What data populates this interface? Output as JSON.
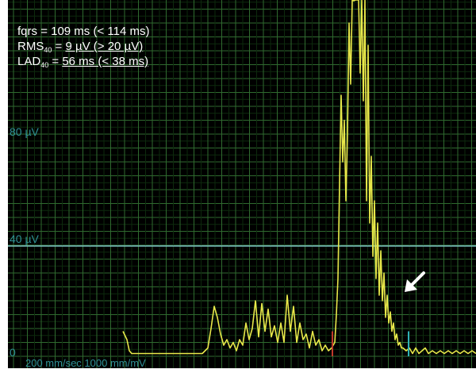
{
  "measures": {
    "fqrs_label": "fqrs",
    "fqrs_value": "= 109 ms (< 114 ms)",
    "rms_label": "RMS",
    "rms_sub": "40",
    "rms_value": "9 µV (> 20 µV)",
    "lad_label": "LAD",
    "lad_sub": "40",
    "lad_value": "56 ms (< 38 ms)"
  },
  "y_labels": [
    "80 µV",
    "40 µV",
    "0"
  ],
  "footer": "200 mm/sec 1000 mm/mV",
  "colors": {
    "background": "#000000",
    "grid_minor": "#0d2a0d",
    "grid_major": "#2f6a2f",
    "grid_vertical": "#3a7a4a",
    "signal": "#e8e84a",
    "threshold_line": "#7fc6c6",
    "onset_marker": "#c0392b",
    "offset_marker": "#2fb0b5",
    "arrow": "#ffffff",
    "label": "#2f8f95"
  },
  "arrow_icon": "arrow-down-left-icon",
  "chart_data": {
    "type": "line",
    "xlabel": "",
    "ylabel": "",
    "ylim": [
      0,
      190
    ],
    "threshold_uV": 40,
    "y_ticks": [
      0,
      40,
      80
    ],
    "series": [
      {
        "values": [
          [
            155,
            9
          ],
          [
            160,
            6
          ],
          [
            163,
            2
          ],
          [
            166,
            1
          ],
          [
            170,
            1
          ],
          [
            180,
            1
          ],
          [
            190,
            1
          ],
          [
            200,
            1
          ],
          [
            215,
            1
          ],
          [
            230,
            1
          ],
          [
            245,
            1
          ],
          [
            255,
            1
          ],
          [
            262,
            3
          ],
          [
            266,
            10
          ],
          [
            270,
            18
          ],
          [
            274,
            14
          ],
          [
            278,
            8
          ],
          [
            282,
            4
          ],
          [
            286,
            6
          ],
          [
            290,
            3
          ],
          [
            294,
            5
          ],
          [
            298,
            2
          ],
          [
            302,
            6
          ],
          [
            306,
            4
          ],
          [
            310,
            12
          ],
          [
            314,
            6
          ],
          [
            318,
            10
          ],
          [
            322,
            20
          ],
          [
            326,
            7
          ],
          [
            330,
            19
          ],
          [
            334,
            9
          ],
          [
            338,
            17
          ],
          [
            342,
            7
          ],
          [
            346,
            11
          ],
          [
            350,
            5
          ],
          [
            354,
            12
          ],
          [
            358,
            5
          ],
          [
            362,
            22
          ],
          [
            366,
            9
          ],
          [
            370,
            18
          ],
          [
            374,
            5
          ],
          [
            378,
            12
          ],
          [
            382,
            6
          ],
          [
            386,
            8
          ],
          [
            390,
            3
          ],
          [
            394,
            9
          ],
          [
            398,
            4
          ],
          [
            402,
            6
          ],
          [
            406,
            2
          ],
          [
            410,
            4
          ],
          [
            414,
            2
          ],
          [
            418,
            3
          ],
          [
            422,
            5
          ],
          [
            424,
            15
          ],
          [
            426,
            28
          ],
          [
            428,
            62
          ],
          [
            430,
            94
          ],
          [
            432,
            70
          ],
          [
            434,
            85
          ],
          [
            436,
            56
          ],
          [
            438,
            80
          ],
          [
            440,
            120
          ],
          [
            442,
            98
          ],
          [
            444,
            155
          ],
          [
            446,
            128
          ],
          [
            448,
            212
          ],
          [
            450,
            152
          ],
          [
            452,
            172
          ],
          [
            454,
            102
          ],
          [
            456,
            178
          ],
          [
            458,
            92
          ],
          [
            460,
            150
          ],
          [
            462,
            56
          ],
          [
            464,
            112
          ],
          [
            466,
            48
          ],
          [
            468,
            72
          ],
          [
            470,
            36
          ],
          [
            472,
            56
          ],
          [
            474,
            28
          ],
          [
            476,
            48
          ],
          [
            478,
            22
          ],
          [
            480,
            38
          ],
          [
            482,
            20
          ],
          [
            484,
            30
          ],
          [
            486,
            14
          ],
          [
            488,
            22
          ],
          [
            490,
            12
          ],
          [
            492,
            16
          ],
          [
            494,
            9
          ],
          [
            496,
            12
          ],
          [
            498,
            6
          ],
          [
            500,
            8
          ],
          [
            502,
            4
          ],
          [
            504,
            5
          ],
          [
            506,
            3
          ],
          [
            508,
            3
          ],
          [
            512,
            2
          ],
          [
            516,
            3
          ],
          [
            520,
            1
          ],
          [
            524,
            3
          ],
          [
            528,
            1
          ],
          [
            532,
            2
          ],
          [
            536,
            3
          ],
          [
            540,
            1
          ],
          [
            545,
            2
          ],
          [
            550,
            1
          ],
          [
            555,
            2
          ],
          [
            560,
            1
          ],
          [
            565,
            2
          ],
          [
            570,
            1
          ],
          [
            575,
            2
          ],
          [
            580,
            1
          ],
          [
            585,
            2
          ],
          [
            590,
            1
          ],
          [
            595,
            2
          ],
          [
            600,
            1
          ]
        ]
      }
    ]
  }
}
